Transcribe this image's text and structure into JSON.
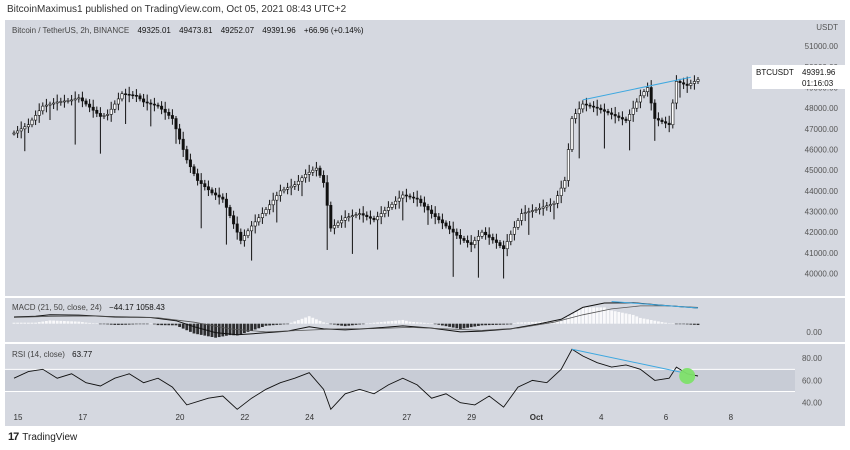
{
  "header": {
    "published": "BitcoinMaximus1 published on TradingView.com, Oct 05, 2021 08:43 UTC+2"
  },
  "footer": {
    "brand": "TradingView",
    "logo_icon": "tradingview-logo-icon"
  },
  "colors": {
    "pane_bg": "#d5d8e0",
    "candle": "#111111",
    "trendline": "#3ea8e0",
    "rsi_band": "#c8ccd6",
    "signal_dot": "#7ee06a",
    "hist_positive": "#ffffff",
    "hist_negative": "#111111"
  },
  "chart_data": {
    "type": "candlestick",
    "symbol_line": "Bitcoin / TetherUS, 2h, BINANCE",
    "ohlc": {
      "open": "49325.01",
      "high": "49473.81",
      "low": "49252.07",
      "close": "49391.96",
      "change": "+66.96 (+0.14%)"
    },
    "price_axis": {
      "unit": "USDT",
      "ticks": [
        "51000.00",
        "50000.00",
        "49000.00",
        "48000.00",
        "47000.00",
        "46000.00",
        "45000.00",
        "44000.00",
        "43000.00",
        "42000.00",
        "41000.00",
        "40000.00"
      ],
      "ylim": [
        39300,
        51300
      ]
    },
    "price_label": {
      "symbol": "BTCUSDT",
      "value": "49391.96",
      "countdown": "01:16:03"
    },
    "x_axis": {
      "ticks": [
        "15",
        "17",
        "20",
        "22",
        "24",
        "27",
        "29",
        "Oct",
        "4",
        "6",
        "8"
      ],
      "tick_index": [
        0,
        18,
        45,
        63,
        81,
        108,
        126,
        144,
        162,
        180,
        198
      ]
    },
    "price_path": [
      {
        "i": 0,
        "v": 46800
      },
      {
        "i": 4,
        "v": 47200
      },
      {
        "i": 8,
        "v": 48100
      },
      {
        "i": 12,
        "v": 48300
      },
      {
        "i": 16,
        "v": 48400
      },
      {
        "i": 18,
        "v": 48500
      },
      {
        "i": 20,
        "v": 48200
      },
      {
        "i": 24,
        "v": 47600
      },
      {
        "i": 26,
        "v": 47700
      },
      {
        "i": 30,
        "v": 48700
      },
      {
        "i": 34,
        "v": 48600
      },
      {
        "i": 36,
        "v": 48300
      },
      {
        "i": 40,
        "v": 48100
      },
      {
        "i": 44,
        "v": 47500
      },
      {
        "i": 48,
        "v": 45500
      },
      {
        "i": 51,
        "v": 44500
      },
      {
        "i": 55,
        "v": 43900
      },
      {
        "i": 58,
        "v": 43600
      },
      {
        "i": 61,
        "v": 42400
      },
      {
        "i": 63,
        "v": 41600
      },
      {
        "i": 66,
        "v": 42300
      },
      {
        "i": 70,
        "v": 43100
      },
      {
        "i": 74,
        "v": 44000
      },
      {
        "i": 78,
        "v": 44300
      },
      {
        "i": 81,
        "v": 44800
      },
      {
        "i": 84,
        "v": 45100
      },
      {
        "i": 86,
        "v": 44400
      },
      {
        "i": 88,
        "v": 42200
      },
      {
        "i": 92,
        "v": 42700
      },
      {
        "i": 96,
        "v": 42900
      },
      {
        "i": 100,
        "v": 42600
      },
      {
        "i": 104,
        "v": 43200
      },
      {
        "i": 108,
        "v": 43800
      },
      {
        "i": 112,
        "v": 43600
      },
      {
        "i": 116,
        "v": 42900
      },
      {
        "i": 120,
        "v": 42300
      },
      {
        "i": 124,
        "v": 41700
      },
      {
        "i": 127,
        "v": 41400
      },
      {
        "i": 130,
        "v": 42000
      },
      {
        "i": 134,
        "v": 41500
      },
      {
        "i": 136,
        "v": 41200
      },
      {
        "i": 138,
        "v": 41900
      },
      {
        "i": 141,
        "v": 42900
      },
      {
        "i": 145,
        "v": 43100
      },
      {
        "i": 150,
        "v": 43400
      },
      {
        "i": 153,
        "v": 44500
      },
      {
        "i": 155,
        "v": 47500
      },
      {
        "i": 158,
        "v": 48200
      },
      {
        "i": 162,
        "v": 48000
      },
      {
        "i": 166,
        "v": 47700
      },
      {
        "i": 170,
        "v": 47400
      },
      {
        "i": 174,
        "v": 48600
      },
      {
        "i": 176,
        "v": 49000
      },
      {
        "i": 178,
        "v": 47500
      },
      {
        "i": 182,
        "v": 47200
      },
      {
        "i": 184,
        "v": 49300
      },
      {
        "i": 187,
        "v": 49100
      },
      {
        "i": 190,
        "v": 49390
      }
    ],
    "price_trendline": [
      {
        "i": 158,
        "v": 48400
      },
      {
        "i": 188,
        "v": 49500
      }
    ],
    "macd": {
      "label": "MACD (21, 50, close, 24)",
      "values": "−44.17  1058.43",
      "ticks": [
        "0.00"
      ],
      "ylim": [
        -1100,
        1600
      ],
      "macd_line": [
        {
          "i": 0,
          "v": 450
        },
        {
          "i": 6,
          "v": 500
        },
        {
          "i": 10,
          "v": 600
        },
        {
          "i": 18,
          "v": 580
        },
        {
          "i": 28,
          "v": 450
        },
        {
          "i": 38,
          "v": 420
        },
        {
          "i": 45,
          "v": 200
        },
        {
          "i": 50,
          "v": -200
        },
        {
          "i": 56,
          "v": -600
        },
        {
          "i": 62,
          "v": -750
        },
        {
          "i": 68,
          "v": -650
        },
        {
          "i": 76,
          "v": -500
        },
        {
          "i": 82,
          "v": -200
        },
        {
          "i": 86,
          "v": -350
        },
        {
          "i": 92,
          "v": -420
        },
        {
          "i": 100,
          "v": -300
        },
        {
          "i": 108,
          "v": -150
        },
        {
          "i": 116,
          "v": -300
        },
        {
          "i": 124,
          "v": -550
        },
        {
          "i": 130,
          "v": -500
        },
        {
          "i": 138,
          "v": -350
        },
        {
          "i": 146,
          "v": 0
        },
        {
          "i": 152,
          "v": 300
        },
        {
          "i": 158,
          "v": 1100
        },
        {
          "i": 164,
          "v": 1400
        },
        {
          "i": 172,
          "v": 1420
        },
        {
          "i": 180,
          "v": 1250
        },
        {
          "i": 190,
          "v": 1060
        }
      ],
      "signal_line": [
        {
          "i": 0,
          "v": 420
        },
        {
          "i": 10,
          "v": 500
        },
        {
          "i": 20,
          "v": 520
        },
        {
          "i": 30,
          "v": 480
        },
        {
          "i": 40,
          "v": 400
        },
        {
          "i": 50,
          "v": 100
        },
        {
          "i": 60,
          "v": -350
        },
        {
          "i": 70,
          "v": -550
        },
        {
          "i": 80,
          "v": -450
        },
        {
          "i": 90,
          "v": -350
        },
        {
          "i": 100,
          "v": -330
        },
        {
          "i": 110,
          "v": -250
        },
        {
          "i": 120,
          "v": -350
        },
        {
          "i": 130,
          "v": -450
        },
        {
          "i": 140,
          "v": -300
        },
        {
          "i": 150,
          "v": 100
        },
        {
          "i": 158,
          "v": 600
        },
        {
          "i": 166,
          "v": 1000
        },
        {
          "i": 174,
          "v": 1200
        },
        {
          "i": 182,
          "v": 1200
        },
        {
          "i": 190,
          "v": 1100
        }
      ],
      "trendline": [
        {
          "i": 166,
          "v": 1500
        },
        {
          "i": 190,
          "v": 1060
        }
      ]
    },
    "rsi": {
      "label": "RSI (14, close)",
      "value": "63.77",
      "ticks": [
        "80.00",
        "60.00",
        "40.00"
      ],
      "tick_values": [
        80,
        60,
        40
      ],
      "band": [
        50,
        70
      ],
      "ylim": [
        37,
        91
      ],
      "line": [
        {
          "i": 0,
          "v": 62
        },
        {
          "i": 4,
          "v": 68
        },
        {
          "i": 8,
          "v": 70
        },
        {
          "i": 12,
          "v": 62
        },
        {
          "i": 16,
          "v": 66
        },
        {
          "i": 20,
          "v": 58
        },
        {
          "i": 24,
          "v": 55
        },
        {
          "i": 28,
          "v": 62
        },
        {
          "i": 32,
          "v": 66
        },
        {
          "i": 36,
          "v": 58
        },
        {
          "i": 40,
          "v": 62
        },
        {
          "i": 44,
          "v": 54
        },
        {
          "i": 48,
          "v": 38
        },
        {
          "i": 54,
          "v": 44
        },
        {
          "i": 58,
          "v": 46
        },
        {
          "i": 62,
          "v": 34
        },
        {
          "i": 66,
          "v": 44
        },
        {
          "i": 70,
          "v": 52
        },
        {
          "i": 74,
          "v": 58
        },
        {
          "i": 78,
          "v": 62
        },
        {
          "i": 82,
          "v": 67
        },
        {
          "i": 86,
          "v": 52
        },
        {
          "i": 88,
          "v": 34
        },
        {
          "i": 92,
          "v": 48
        },
        {
          "i": 96,
          "v": 52
        },
        {
          "i": 100,
          "v": 48
        },
        {
          "i": 104,
          "v": 56
        },
        {
          "i": 108,
          "v": 62
        },
        {
          "i": 112,
          "v": 56
        },
        {
          "i": 116,
          "v": 44
        },
        {
          "i": 120,
          "v": 48
        },
        {
          "i": 124,
          "v": 40
        },
        {
          "i": 128,
          "v": 38
        },
        {
          "i": 132,
          "v": 46
        },
        {
          "i": 136,
          "v": 36
        },
        {
          "i": 140,
          "v": 54
        },
        {
          "i": 144,
          "v": 60
        },
        {
          "i": 148,
          "v": 58
        },
        {
          "i": 152,
          "v": 70
        },
        {
          "i": 155,
          "v": 88
        },
        {
          "i": 158,
          "v": 82
        },
        {
          "i": 162,
          "v": 76
        },
        {
          "i": 166,
          "v": 72
        },
        {
          "i": 170,
          "v": 74
        },
        {
          "i": 174,
          "v": 70
        },
        {
          "i": 178,
          "v": 60
        },
        {
          "i": 182,
          "v": 62
        },
        {
          "i": 184,
          "v": 72
        },
        {
          "i": 187,
          "v": 66
        },
        {
          "i": 190,
          "v": 64
        }
      ],
      "trendline": [
        {
          "i": 155,
          "v": 88
        },
        {
          "i": 186,
          "v": 67
        }
      ],
      "signal_point": {
        "i": 187,
        "v": 64
      }
    }
  }
}
